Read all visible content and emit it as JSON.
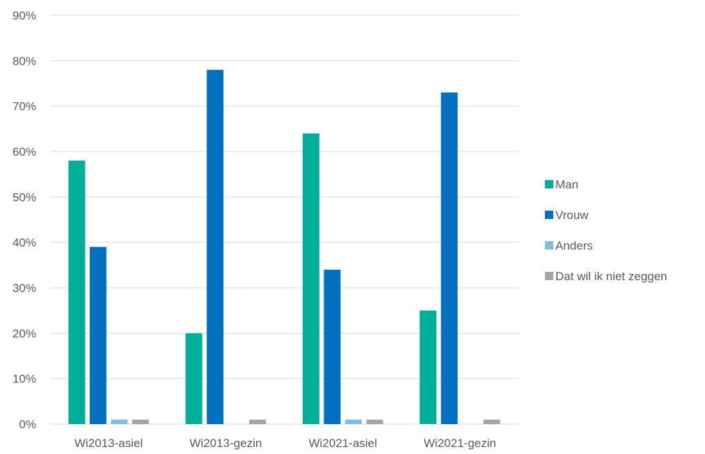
{
  "chart_data": {
    "type": "bar",
    "title": "",
    "xlabel": "",
    "ylabel": "",
    "categories": [
      "Wi2013-asiel",
      "Wi2013-gezin",
      "Wi2021-asiel",
      "Wi2021-gezin"
    ],
    "series": [
      {
        "name": "Man",
        "color": "#00AE9C",
        "values": [
          58,
          20,
          64,
          25
        ]
      },
      {
        "name": "Vrouw",
        "color": "#0070C0",
        "values": [
          39,
          78,
          34,
          73
        ]
      },
      {
        "name": "Anders",
        "color": "#86BBE0",
        "values": [
          1,
          0,
          1,
          0
        ]
      },
      {
        "name": "Dat wil ik niet zeggen",
        "color": "#A5A5A5",
        "values": [
          1,
          1,
          1,
          1
        ]
      }
    ],
    "ylim": [
      0,
      90
    ],
    "yticks": [
      "0%",
      "10%",
      "20%",
      "30%",
      "40%",
      "50%",
      "60%",
      "70%",
      "80%",
      "90%"
    ],
    "grid": true,
    "legend_position": "right",
    "colors": {
      "gridline": "#D9D9D9",
      "text": "#595959"
    }
  }
}
